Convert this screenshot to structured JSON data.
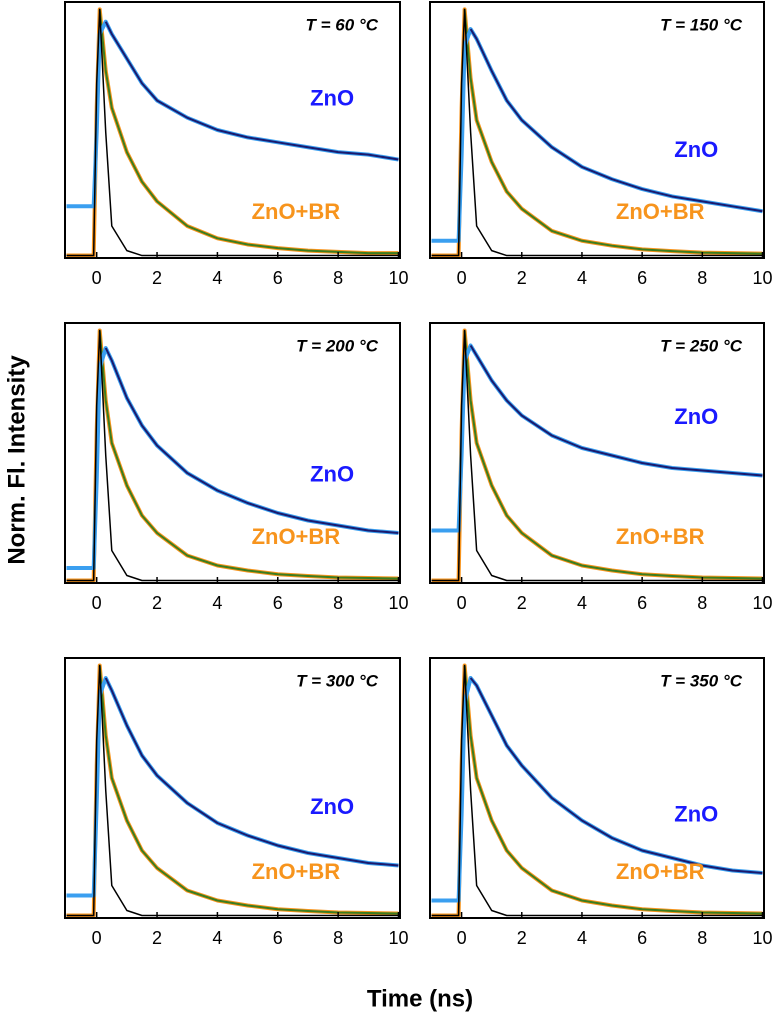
{
  "ylabel": "Norm. Fl. Intensity",
  "xlabel": "Time (ns)",
  "chart_data": [
    {
      "type": "line",
      "title": "T = 60 °C",
      "x": [
        -1,
        -0.5,
        -0.1,
        0,
        0.1,
        0.3,
        0.5,
        1,
        1.5,
        2,
        3,
        4,
        5,
        6,
        7,
        8,
        9,
        10
      ],
      "xlim": [
        -1.05,
        10.05
      ],
      "ylim": [
        -0.01,
        1.03
      ],
      "xticks": [
        0,
        2,
        4,
        6,
        8,
        10
      ],
      "series": [
        {
          "name": "ZnO",
          "color": "#3a9ff0",
          "fit_color": "#1a1a6e",
          "label_color": "#1a1aff",
          "values": [
            0.2,
            0.2,
            0.2,
            0.5,
            0.9,
            0.95,
            0.9,
            0.8,
            0.7,
            0.63,
            0.56,
            0.51,
            0.48,
            0.46,
            0.44,
            0.42,
            0.41,
            0.39
          ]
        },
        {
          "name": "ZnO+BR",
          "color": "#f7941d",
          "fit_color": "#3a7d1f",
          "label_color": "#f7941d",
          "values": [
            0,
            0,
            0,
            0.6,
            1,
            0.75,
            0.6,
            0.42,
            0.3,
            0.22,
            0.12,
            0.07,
            0.045,
            0.03,
            0.02,
            0.015,
            0.01,
            0.01
          ]
        }
      ],
      "irf": {
        "color": "#000000",
        "values": [
          0,
          0,
          0,
          0.7,
          1,
          0.5,
          0.12,
          0.02,
          0,
          0,
          0,
          0,
          0,
          0,
          0,
          0,
          0,
          0
        ]
      }
    },
    {
      "type": "line",
      "title": "T = 150 °C",
      "x": [
        -1,
        -0.5,
        -0.1,
        0,
        0.1,
        0.3,
        0.5,
        1,
        1.5,
        2,
        3,
        4,
        5,
        6,
        7,
        8,
        9,
        10
      ],
      "xlim": [
        -1.05,
        10.05
      ],
      "ylim": [
        -0.01,
        1.03
      ],
      "xticks": [
        0,
        2,
        4,
        6,
        8,
        10
      ],
      "series": [
        {
          "name": "ZnO",
          "color": "#3a9ff0",
          "fit_color": "#1a1a6e",
          "label_color": "#1a1aff",
          "values": [
            0.06,
            0.06,
            0.06,
            0.4,
            0.85,
            0.92,
            0.88,
            0.75,
            0.63,
            0.55,
            0.44,
            0.36,
            0.31,
            0.27,
            0.24,
            0.22,
            0.2,
            0.18
          ]
        },
        {
          "name": "ZnO+BR",
          "color": "#f7941d",
          "fit_color": "#3a7d1f",
          "label_color": "#f7941d",
          "values": [
            0,
            0,
            0,
            0.6,
            1,
            0.72,
            0.55,
            0.38,
            0.26,
            0.19,
            0.1,
            0.06,
            0.04,
            0.025,
            0.018,
            0.012,
            0.01,
            0.008
          ]
        }
      ],
      "irf": {
        "color": "#000000",
        "values": [
          0,
          0,
          0,
          0.7,
          1,
          0.5,
          0.12,
          0.02,
          0,
          0,
          0,
          0,
          0,
          0,
          0,
          0,
          0,
          0
        ]
      }
    },
    {
      "type": "line",
      "title": "T = 200 °C",
      "x": [
        -1,
        -0.5,
        -0.1,
        0,
        0.1,
        0.3,
        0.5,
        1,
        1.5,
        2,
        3,
        4,
        5,
        6,
        7,
        8,
        9,
        10
      ],
      "xlim": [
        -1.05,
        10.05
      ],
      "ylim": [
        -0.01,
        1.03
      ],
      "xticks": [
        0,
        2,
        4,
        6,
        8,
        10
      ],
      "series": [
        {
          "name": "ZnO",
          "color": "#3a9ff0",
          "fit_color": "#1a1a6e",
          "label_color": "#1a1aff",
          "values": [
            0.05,
            0.05,
            0.05,
            0.4,
            0.85,
            0.93,
            0.88,
            0.73,
            0.62,
            0.54,
            0.43,
            0.36,
            0.31,
            0.27,
            0.24,
            0.22,
            0.2,
            0.19
          ]
        },
        {
          "name": "ZnO+BR",
          "color": "#f7941d",
          "fit_color": "#3a7d1f",
          "label_color": "#f7941d",
          "values": [
            0,
            0,
            0,
            0.6,
            1,
            0.72,
            0.55,
            0.38,
            0.26,
            0.19,
            0.1,
            0.06,
            0.04,
            0.025,
            0.018,
            0.012,
            0.01,
            0.008
          ]
        }
      ],
      "irf": {
        "color": "#000000",
        "values": [
          0,
          0,
          0,
          0.7,
          1,
          0.5,
          0.12,
          0.02,
          0,
          0,
          0,
          0,
          0,
          0,
          0,
          0,
          0,
          0
        ]
      }
    },
    {
      "type": "line",
      "title": "T = 250 °C",
      "x": [
        -1,
        -0.5,
        -0.1,
        0,
        0.1,
        0.3,
        0.5,
        1,
        1.5,
        2,
        3,
        4,
        5,
        6,
        7,
        8,
        9,
        10
      ],
      "xlim": [
        -1.05,
        10.05
      ],
      "ylim": [
        -0.01,
        1.03
      ],
      "xticks": [
        0,
        2,
        4,
        6,
        8,
        10
      ],
      "series": [
        {
          "name": "ZnO",
          "color": "#3a9ff0",
          "fit_color": "#1a1a6e",
          "label_color": "#1a1aff",
          "values": [
            0.2,
            0.2,
            0.2,
            0.5,
            0.88,
            0.94,
            0.9,
            0.8,
            0.72,
            0.66,
            0.58,
            0.53,
            0.5,
            0.47,
            0.45,
            0.44,
            0.43,
            0.42
          ]
        },
        {
          "name": "ZnO+BR",
          "color": "#f7941d",
          "fit_color": "#3a7d1f",
          "label_color": "#f7941d",
          "values": [
            0,
            0,
            0,
            0.6,
            1,
            0.72,
            0.55,
            0.38,
            0.26,
            0.19,
            0.1,
            0.06,
            0.04,
            0.025,
            0.018,
            0.012,
            0.01,
            0.008
          ]
        }
      ],
      "irf": {
        "color": "#000000",
        "values": [
          0,
          0,
          0,
          0.7,
          1,
          0.5,
          0.12,
          0.02,
          0,
          0,
          0,
          0,
          0,
          0,
          0,
          0,
          0,
          0
        ]
      }
    },
    {
      "type": "line",
      "title": "T = 300 °C",
      "x": [
        -1,
        -0.5,
        -0.1,
        0,
        0.1,
        0.3,
        0.5,
        1,
        1.5,
        2,
        3,
        4,
        5,
        6,
        7,
        8,
        9,
        10
      ],
      "xlim": [
        -1.05,
        10.05
      ],
      "ylim": [
        -0.01,
        1.03
      ],
      "xticks": [
        0,
        2,
        4,
        6,
        8,
        10
      ],
      "series": [
        {
          "name": "ZnO",
          "color": "#3a9ff0",
          "fit_color": "#1a1a6e",
          "label_color": "#1a1aff",
          "values": [
            0.08,
            0.08,
            0.08,
            0.45,
            0.88,
            0.95,
            0.9,
            0.76,
            0.64,
            0.56,
            0.45,
            0.37,
            0.32,
            0.28,
            0.25,
            0.23,
            0.21,
            0.2
          ]
        },
        {
          "name": "ZnO+BR",
          "color": "#f7941d",
          "fit_color": "#3a7d1f",
          "label_color": "#f7941d",
          "values": [
            0,
            0,
            0,
            0.6,
            1,
            0.72,
            0.55,
            0.38,
            0.26,
            0.19,
            0.1,
            0.06,
            0.04,
            0.025,
            0.018,
            0.012,
            0.01,
            0.008
          ]
        }
      ],
      "irf": {
        "color": "#000000",
        "values": [
          0,
          0,
          0,
          0.7,
          1,
          0.5,
          0.12,
          0.02,
          0,
          0,
          0,
          0,
          0,
          0,
          0,
          0,
          0,
          0
        ]
      }
    },
    {
      "type": "line",
      "title": "T = 350 °C",
      "x": [
        -1,
        -0.5,
        -0.1,
        0,
        0.1,
        0.3,
        0.5,
        1,
        1.5,
        2,
        3,
        4,
        5,
        6,
        7,
        8,
        9,
        10
      ],
      "xlim": [
        -1.05,
        10.05
      ],
      "ylim": [
        -0.01,
        1.03
      ],
      "xticks": [
        0,
        2,
        4,
        6,
        8,
        10
      ],
      "series": [
        {
          "name": "ZnO",
          "color": "#3a9ff0",
          "fit_color": "#1a1a6e",
          "label_color": "#1a1aff",
          "values": [
            0.06,
            0.06,
            0.06,
            0.4,
            0.85,
            0.95,
            0.92,
            0.8,
            0.68,
            0.6,
            0.47,
            0.38,
            0.31,
            0.26,
            0.23,
            0.2,
            0.18,
            0.17
          ]
        },
        {
          "name": "ZnO+BR",
          "color": "#f7941d",
          "fit_color": "#3a7d1f",
          "label_color": "#f7941d",
          "values": [
            0,
            0,
            0,
            0.6,
            1,
            0.72,
            0.55,
            0.38,
            0.26,
            0.19,
            0.1,
            0.06,
            0.04,
            0.025,
            0.018,
            0.012,
            0.01,
            0.008
          ]
        }
      ],
      "irf": {
        "color": "#000000",
        "values": [
          0,
          0,
          0,
          0.7,
          1,
          0.5,
          0.12,
          0.02,
          0,
          0,
          0,
          0,
          0,
          0,
          0,
          0,
          0,
          0
        ]
      }
    }
  ]
}
